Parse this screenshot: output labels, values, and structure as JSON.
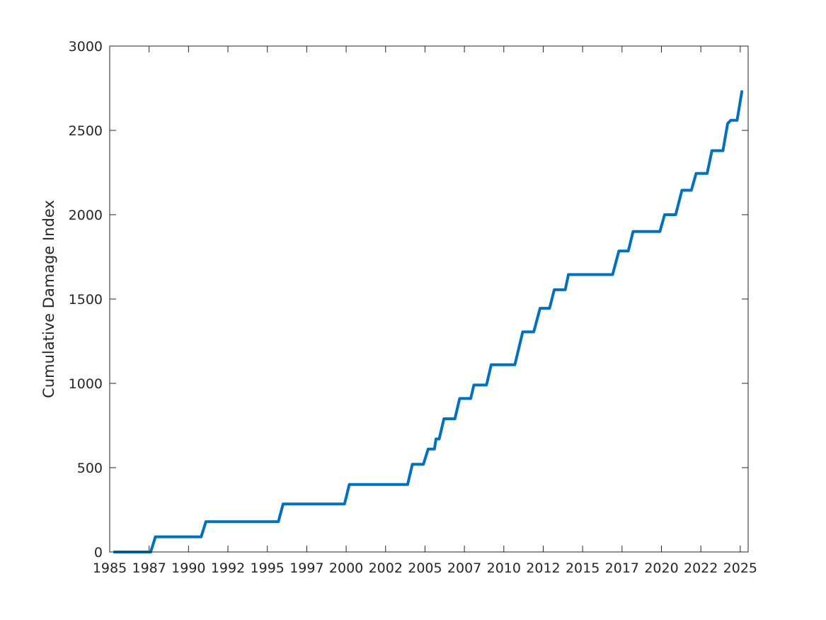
{
  "chart_data": {
    "type": "line",
    "title": "",
    "xlabel": "",
    "ylabel": "Cumulative Damage Index",
    "xlim": [
      1985.0,
      2025.5
    ],
    "ylim": [
      0,
      3000
    ],
    "x_tick_values": [
      1985.0,
      1987.5,
      1990.0,
      1992.5,
      1995.0,
      1997.5,
      2000.0,
      2002.5,
      2005.0,
      2007.5,
      2010.0,
      2012.5,
      2015.0,
      2017.5,
      2020.0,
      2022.5,
      2025.0
    ],
    "x_tick_labels": [
      "1985",
      "1987",
      "1990",
      "1992",
      "1995",
      "1997",
      "2000",
      "2002",
      "2005",
      "2007",
      "2010",
      "2012",
      "2015",
      "2017",
      "2020",
      "2022",
      "2025"
    ],
    "y_ticks": [
      0,
      500,
      1000,
      1500,
      2000,
      2500,
      3000
    ],
    "y_tick_labels": [
      "0",
      "500",
      "1000",
      "1500",
      "2000",
      "2500",
      "3000"
    ],
    "grid": false,
    "legend": "none",
    "series": [
      {
        "color": "#0072BD",
        "x": [
          1985.3,
          1987.6,
          1987.9,
          1990.8,
          1991.1,
          1995.7,
          1996.0,
          1999.9,
          2000.2,
          2003.9,
          2004.2,
          2004.9,
          2005.2,
          2005.6,
          2005.7,
          2005.9,
          2006.2,
          2006.9,
          2007.2,
          2007.9,
          2008.1,
          2008.9,
          2009.2,
          2010.7,
          2011.2,
          2011.9,
          2012.3,
          2012.9,
          2013.2,
          2013.9,
          2014.1,
          2016.9,
          2017.3,
          2017.9,
          2018.2,
          2019.9,
          2020.2,
          2020.9,
          2021.3,
          2021.9,
          2022.2,
          2022.9,
          2023.2,
          2023.9,
          2024.2,
          2024.4,
          2024.8,
          2025.1
        ],
        "y": [
          0,
          0,
          90,
          90,
          180,
          180,
          285,
          285,
          400,
          400,
          520,
          520,
          610,
          610,
          670,
          670,
          790,
          790,
          910,
          910,
          990,
          990,
          1110,
          1110,
          1305,
          1305,
          1445,
          1445,
          1555,
          1555,
          1645,
          1645,
          1785,
          1785,
          1900,
          1900,
          2000,
          2000,
          2145,
          2145,
          2245,
          2245,
          2380,
          2380,
          2540,
          2560,
          2560,
          2730
        ]
      }
    ]
  }
}
